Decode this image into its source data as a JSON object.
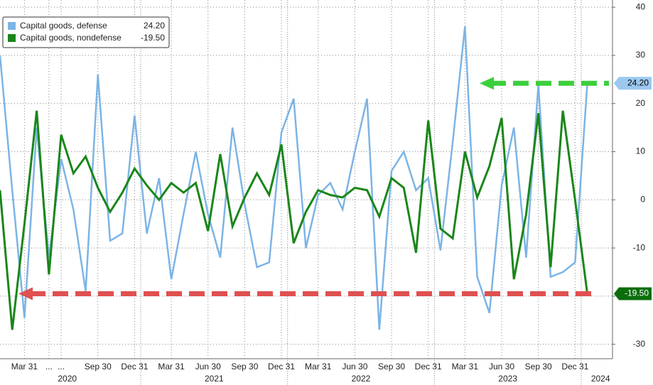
{
  "chart_data": {
    "type": "line",
    "xticks": [
      {
        "value": 2,
        "label": "Mar 31"
      },
      {
        "value": 4,
        "label": "..."
      },
      {
        "value": 5,
        "label": "..."
      },
      {
        "value": 8,
        "label": "Sep 30"
      },
      {
        "value": 11,
        "label": "Dec 31"
      },
      {
        "value": 14,
        "label": "Mar 31"
      },
      {
        "value": 17,
        "label": "Jun 30"
      },
      {
        "value": 20,
        "label": "Sep 30"
      },
      {
        "value": 23,
        "label": "Dec 31"
      },
      {
        "value": 26,
        "label": "Mar 31"
      },
      {
        "value": 29,
        "label": "Jun 30"
      },
      {
        "value": 32,
        "label": "Sep 30"
      },
      {
        "value": 35,
        "label": "Dec 31"
      },
      {
        "value": 38,
        "label": "Mar 31"
      },
      {
        "value": 41,
        "label": "Jun 30"
      },
      {
        "value": 44,
        "label": "Sep 30"
      },
      {
        "value": 47,
        "label": "Dec 31"
      }
    ],
    "xlim": [
      0,
      50
    ],
    "years": [
      2020,
      2021,
      2022,
      2023,
      2024
    ],
    "ylim": [
      -33,
      41.5
    ],
    "yticks": [
      40,
      30,
      20,
      10,
      0,
      -10,
      -20,
      -30
    ],
    "grid": true,
    "legend": "upper left",
    "series": [
      {
        "name": "Capital goods, defense",
        "color": "#7cb4e6",
        "value_label": "24.20",
        "values": [
          30,
          2,
          -24.5,
          15,
          -12,
          8.5,
          -2,
          -19,
          26,
          -8.5,
          -7,
          17.5,
          -7,
          4.5,
          -16.5,
          -3,
          10,
          -3,
          -12,
          15,
          -1,
          -14,
          -13,
          14,
          21,
          -10,
          1,
          3.5,
          -2,
          10,
          21,
          -27,
          6,
          10,
          2,
          4.5,
          -10.5,
          12,
          36,
          -16,
          -23.5,
          3,
          15,
          -12,
          24,
          -16,
          -15,
          -13,
          24.2
        ]
      },
      {
        "name": "Capital goods, nondefense",
        "color": "#1a861a",
        "value_label": "-19.50",
        "values": [
          2,
          -27,
          -5,
          18.5,
          -15.5,
          13.5,
          5.5,
          9,
          2.5,
          -2.5,
          1.5,
          6.5,
          3,
          0,
          3.5,
          1.5,
          3.5,
          -6.5,
          9.5,
          -5.5,
          0.5,
          5.5,
          1,
          11.5,
          -9,
          -2.5,
          2,
          1,
          0.5,
          2.5,
          2,
          -3.5,
          4.5,
          2.5,
          -11,
          16.5,
          -6,
          -8,
          10,
          0.5,
          7,
          17,
          -16.5,
          -3,
          18,
          -14,
          18.5,
          0,
          -19.5
        ]
      }
    ]
  }
}
